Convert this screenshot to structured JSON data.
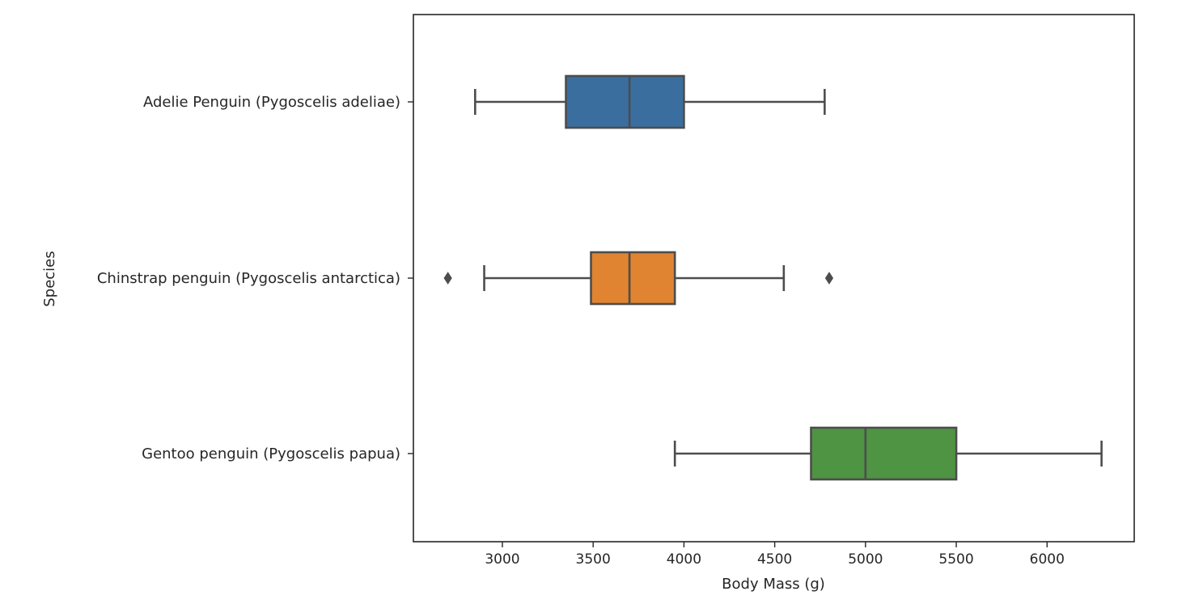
{
  "chart_data": {
    "type": "boxplot",
    "orientation": "horizontal",
    "xlabel": "Body Mass (g)",
    "ylabel": "Species",
    "xlim": [
      2510,
      6480
    ],
    "xticks": [
      3000,
      3500,
      4000,
      4500,
      5000,
      5500,
      6000
    ],
    "xtick_labels": [
      "3000",
      "3500",
      "4000",
      "4500",
      "5000",
      "5500",
      "6000"
    ],
    "grid": false,
    "categories": [
      "Adelie Penguin (Pygoscelis adeliae)",
      "Chinstrap penguin (Pygoscelis antarctica)",
      "Gentoo penguin (Pygoscelis papua)"
    ],
    "boxes": [
      {
        "category": "Adelie Penguin (Pygoscelis adeliae)",
        "whisker_low": 2850,
        "q1": 3350,
        "median": 3700,
        "q3": 4000,
        "whisker_high": 4775,
        "outliers": [],
        "color": "#3a6e9e"
      },
      {
        "category": "Chinstrap penguin (Pygoscelis antarctica)",
        "whisker_low": 2900,
        "q1": 3488,
        "median": 3700,
        "q3": 3950,
        "whisker_high": 4550,
        "outliers": [
          2700,
          4800
        ],
        "color": "#e08432"
      },
      {
        "category": "Gentoo penguin (Pygoscelis papua)",
        "whisker_low": 3950,
        "q1": 4700,
        "median": 5000,
        "q3": 5500,
        "whisker_high": 6300,
        "outliers": [],
        "color": "#4e9443"
      }
    ]
  }
}
